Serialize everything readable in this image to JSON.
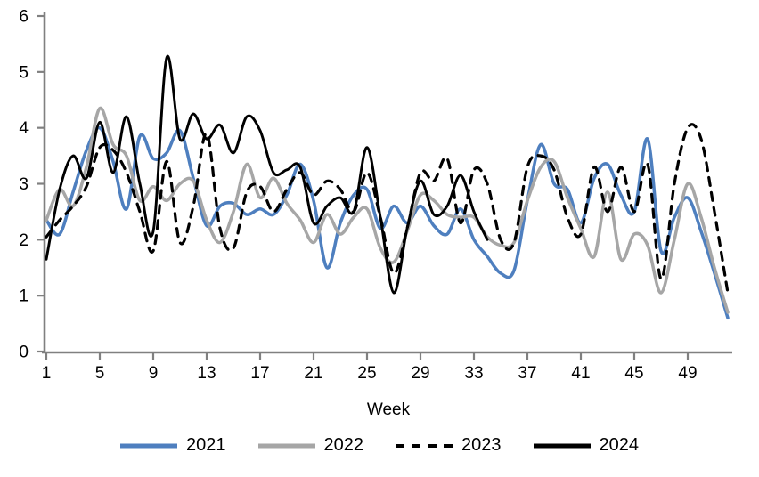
{
  "chart_data": {
    "type": "line",
    "title": "",
    "xlabel": "Week",
    "ylabel": "",
    "ylim": [
      0,
      6
    ],
    "y_ticks": [
      0,
      1,
      2,
      3,
      4,
      5,
      6
    ],
    "x_ticks": [
      1,
      5,
      9,
      13,
      17,
      21,
      25,
      29,
      33,
      37,
      41,
      45,
      49
    ],
    "x_range": [
      1,
      52
    ],
    "grid": false,
    "legend_position": "bottom",
    "axis_color": "#808080",
    "text_color": "#000000",
    "series": [
      {
        "name": "2021",
        "color": "#4e7fbf",
        "style": "solid",
        "start_week": 1,
        "values": [
          2.35,
          2.1,
          2.85,
          3.6,
          4.0,
          3.4,
          2.55,
          3.85,
          3.45,
          3.55,
          3.95,
          3.1,
          2.25,
          2.6,
          2.65,
          2.45,
          2.55,
          2.45,
          2.8,
          3.35,
          2.7,
          1.5,
          2.3,
          2.8,
          2.9,
          2.2,
          2.6,
          2.3,
          2.6,
          2.25,
          2.1,
          2.55,
          2.0,
          1.7,
          1.4,
          1.45,
          2.7,
          3.7,
          3.0,
          2.9,
          2.3,
          3.1,
          3.35,
          2.8,
          2.5,
          3.8,
          1.8,
          2.4,
          2.75,
          2.15,
          1.4,
          0.6
        ]
      },
      {
        "name": "2022",
        "color": "#a6a6a6",
        "style": "solid",
        "start_week": 1,
        "values": [
          2.35,
          2.9,
          2.6,
          3.3,
          4.35,
          3.7,
          3.5,
          2.7,
          2.95,
          2.7,
          3.0,
          3.05,
          2.35,
          1.95,
          2.5,
          3.35,
          2.75,
          3.1,
          2.65,
          2.35,
          1.95,
          2.45,
          2.1,
          2.4,
          2.55,
          1.85,
          1.6,
          2.15,
          2.8,
          2.7,
          2.45,
          2.4,
          2.4,
          2.05,
          1.9,
          1.95,
          2.7,
          3.3,
          3.4,
          2.75,
          2.2,
          1.7,
          2.85,
          1.65,
          2.1,
          1.9,
          1.05,
          2.0,
          3.0,
          2.4,
          1.5,
          0.7
        ]
      },
      {
        "name": "2023",
        "color": "#000000",
        "style": "dashed",
        "start_week": 1,
        "values": [
          2.05,
          2.35,
          2.6,
          2.95,
          3.65,
          3.6,
          3.2,
          2.5,
          1.8,
          3.4,
          1.95,
          2.6,
          3.9,
          2.2,
          1.85,
          2.85,
          2.95,
          2.5,
          2.9,
          3.2,
          2.8,
          3.05,
          2.9,
          2.5,
          3.2,
          2.4,
          1.4,
          2.2,
          3.2,
          3.05,
          3.45,
          2.3,
          3.25,
          3.0,
          2.0,
          1.95,
          3.3,
          3.5,
          3.25,
          2.4,
          2.1,
          3.3,
          2.5,
          3.3,
          2.5,
          3.35,
          1.3,
          3.0,
          4.0,
          3.8,
          2.5,
          1.05
        ]
      },
      {
        "name": "2024",
        "color": "#000000",
        "style": "solid",
        "start_week": 1,
        "values": [
          1.65,
          2.9,
          3.5,
          3.1,
          4.1,
          3.2,
          4.2,
          3.0,
          2.15,
          5.25,
          3.8,
          4.25,
          3.8,
          4.05,
          3.55,
          4.2,
          3.95,
          3.2,
          3.25,
          3.3,
          2.3,
          2.6,
          2.75,
          2.5,
          3.65,
          2.4,
          1.05,
          2.2,
          3.05,
          2.45,
          2.6,
          3.15,
          2.5,
          2.0
        ]
      }
    ]
  }
}
